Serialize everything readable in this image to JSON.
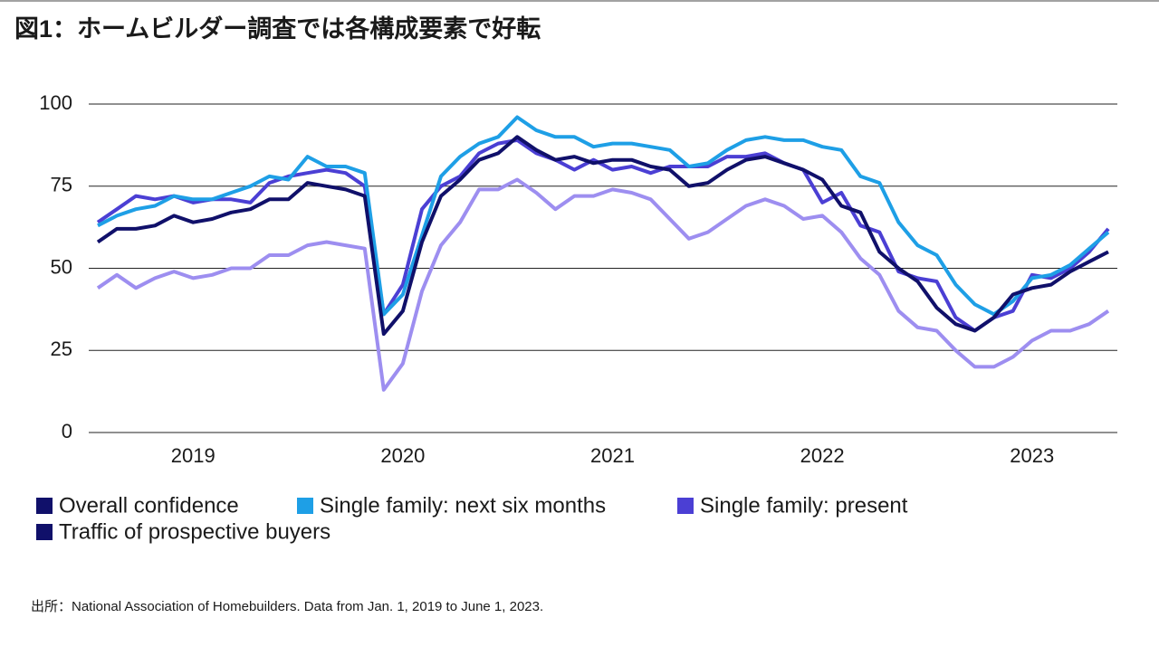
{
  "chart_data": {
    "type": "line",
    "title": "図1：ホームビルダー調査では各構成要素で好転",
    "source": "出所：National Association of Homebuilders. Data from Jan. 1, 2019 to June 1, 2023.",
    "categories": [
      null,
      null,
      null,
      null,
      null,
      "2019",
      null,
      null,
      null,
      null,
      null,
      null,
      null,
      null,
      null,
      null,
      "2020",
      null,
      null,
      null,
      null,
      null,
      null,
      null,
      null,
      null,
      null,
      "2021",
      null,
      null,
      null,
      null,
      null,
      null,
      null,
      null,
      null,
      null,
      "2022",
      null,
      null,
      null,
      null,
      null,
      null,
      null,
      null,
      null,
      null,
      "2023",
      null,
      null,
      null,
      null
    ],
    "ylim": [
      0,
      100
    ],
    "yticks": [
      0,
      25,
      50,
      75,
      100
    ],
    "grid": true,
    "series": [
      {
        "name": "Overall confidence",
        "color": "#10106a",
        "values": [
          58,
          62,
          62,
          63,
          66,
          64,
          65,
          67,
          68,
          71,
          71,
          76,
          75,
          74,
          72,
          30,
          37,
          58,
          72,
          77,
          83,
          85,
          90,
          86,
          83,
          84,
          82,
          83,
          83,
          81,
          80,
          75,
          76,
          80,
          83,
          84,
          82,
          80,
          77,
          69,
          67,
          55,
          50,
          46,
          38,
          33,
          31,
          35,
          42,
          44,
          45,
          49,
          52,
          55
        ]
      },
      {
        "name": "Single family: next six months",
        "color": "#1e9fe6",
        "values": [
          63,
          66,
          68,
          69,
          72,
          71,
          71,
          73,
          75,
          78,
          77,
          84,
          81,
          81,
          79,
          36,
          42,
          60,
          78,
          84,
          88,
          90,
          96,
          92,
          90,
          90,
          87,
          88,
          88,
          87,
          86,
          81,
          82,
          86,
          89,
          90,
          89,
          89,
          87,
          86,
          78,
          76,
          64,
          57,
          54,
          45,
          39,
          36,
          40,
          47,
          48,
          51,
          56,
          61
        ]
      },
      {
        "name": "Single family: present",
        "color": "#4b3fd4",
        "values": [
          64,
          68,
          72,
          71,
          72,
          70,
          71,
          71,
          70,
          76,
          78,
          79,
          80,
          79,
          75,
          36,
          45,
          68,
          75,
          78,
          85,
          88,
          89,
          85,
          83,
          80,
          83,
          80,
          81,
          79,
          81,
          81,
          81,
          84,
          84,
          85,
          82,
          80,
          70,
          73,
          63,
          61,
          49,
          47,
          46,
          35,
          31,
          35,
          37,
          48,
          47,
          50,
          55,
          62
        ]
      },
      {
        "name": "Traffic of prospective buyers",
        "color": "#9d8ef0",
        "legend_color": "#10106a",
        "values": [
          44,
          48,
          44,
          47,
          49,
          47,
          48,
          50,
          50,
          54,
          54,
          57,
          58,
          57,
          56,
          13,
          21,
          43,
          57,
          64,
          74,
          74,
          77,
          73,
          68,
          72,
          72,
          74,
          73,
          71,
          65,
          59,
          61,
          65,
          69,
          71,
          69,
          65,
          66,
          61,
          53,
          48,
          37,
          32,
          31,
          25,
          20,
          20,
          23,
          28,
          31,
          31,
          33,
          37
        ]
      }
    ]
  }
}
